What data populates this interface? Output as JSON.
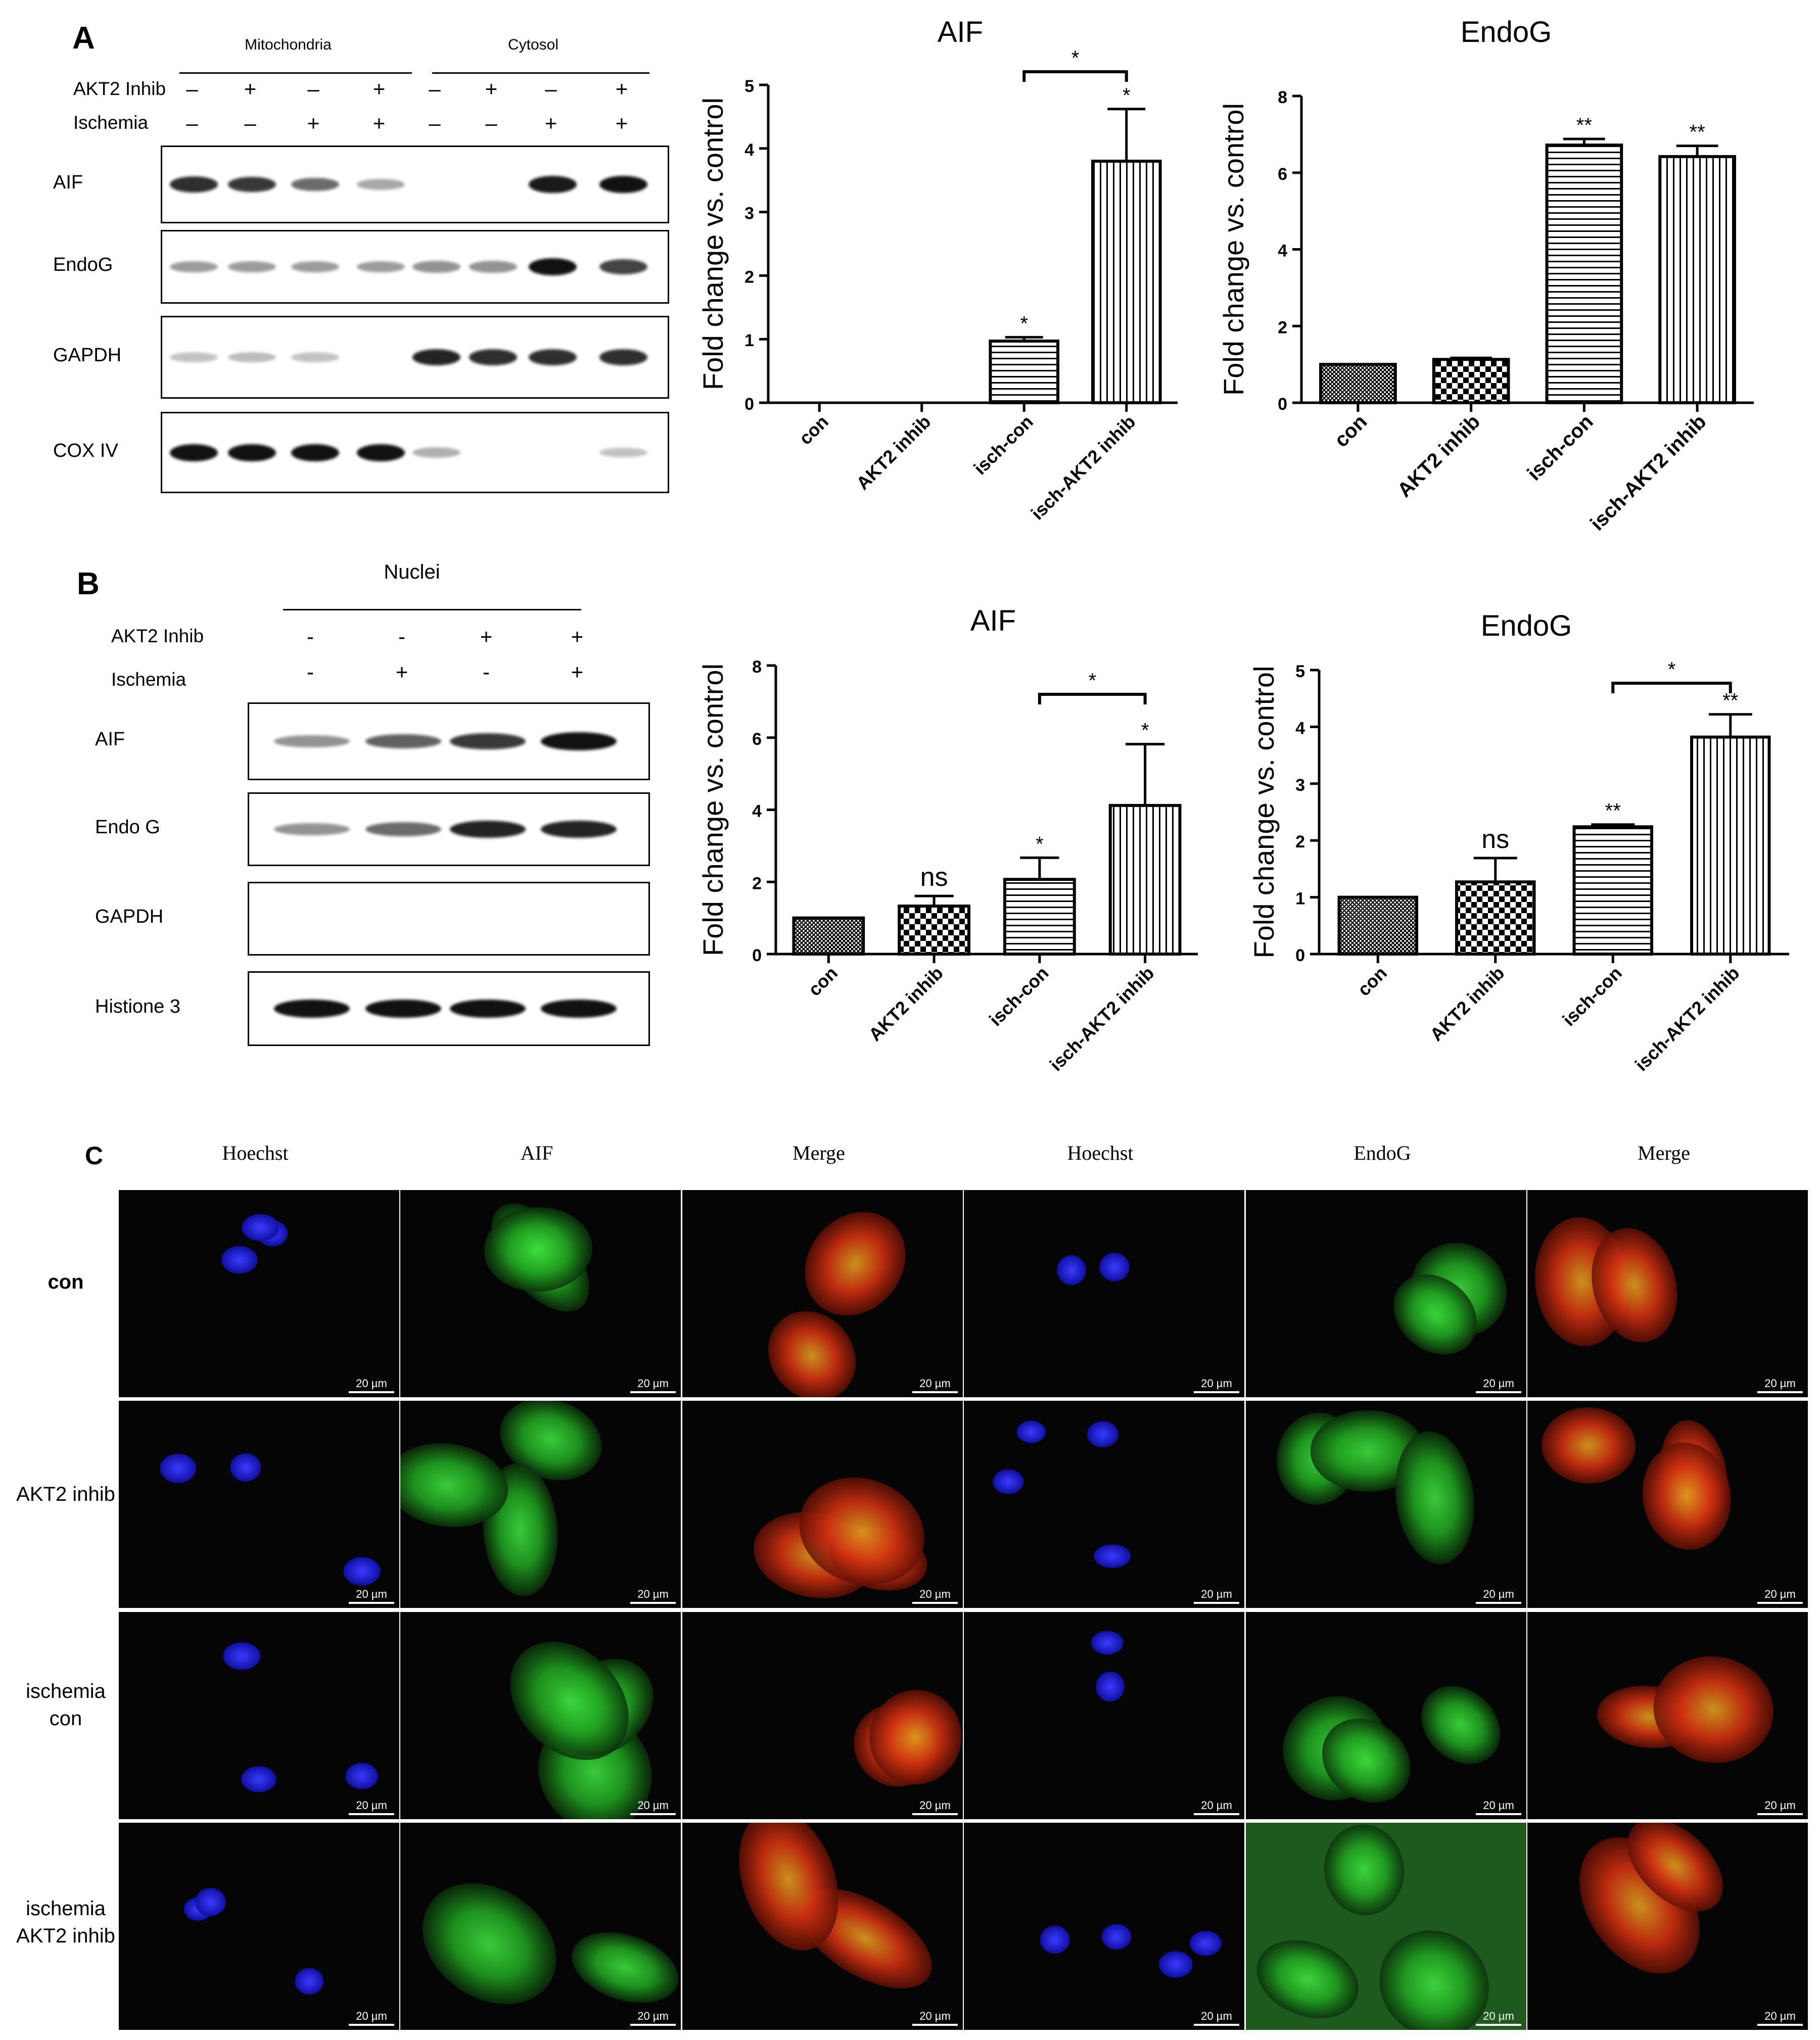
{
  "panel_a": {
    "label": "A",
    "fractions": [
      "Mitochondria",
      "Cytosol"
    ],
    "row_labels": [
      "AKT2 Inhib",
      "Ischemia"
    ],
    "akt2_signs": [
      "–",
      "+",
      "–",
      "+",
      "–",
      "+",
      "–",
      "+"
    ],
    "isch_signs": [
      "–",
      "–",
      "+",
      "+",
      "–",
      "–",
      "+",
      "+"
    ],
    "blots": [
      "AIF",
      "EndoG",
      "GAPDH",
      "COX IV"
    ]
  },
  "panel_b": {
    "label": "B",
    "fraction": "Nuclei",
    "row_labels": [
      "AKT2 Inhib",
      "Ischemia"
    ],
    "akt2_signs": [
      "-",
      "-",
      "+",
      "+"
    ],
    "isch_signs": [
      "-",
      "+",
      "-",
      "+"
    ],
    "blots": [
      "AIF",
      "Endo G",
      "GAPDH",
      "Histione 3"
    ]
  },
  "panel_c": {
    "label": "C",
    "columns": [
      "Hoechst",
      "AIF",
      "Merge",
      "Hoechst",
      "EndoG",
      "Merge"
    ],
    "rows": [
      "con",
      "AKT2 inhib",
      "ischemia\ncon",
      "ischemia\nAKT2 inhib"
    ],
    "scale_bar": "20 µm"
  },
  "colors": {
    "nuclei": "#2a2aff",
    "aif_green": "#22c022",
    "merge_red": "#d02a10",
    "background": "#050505"
  },
  "chart_data": [
    {
      "type": "bar",
      "title": "AIF",
      "ylabel": "Fold change vs. control",
      "categories": [
        "con",
        "AKT2 inhib",
        "isch-con",
        "isch-AKT2 inhib"
      ],
      "values": [
        0,
        0,
        0.97,
        3.8
      ],
      "errors": [
        0,
        0,
        0.06,
        0.82
      ],
      "patterns": [
        "crosshatch",
        "checker",
        "hlines",
        "vlines"
      ],
      "sig": [
        "",
        "",
        "*",
        "*"
      ],
      "bracket": {
        "from": 2,
        "to": 3,
        "label": "*"
      },
      "ylim": [
        0,
        5
      ],
      "yticks": [
        0,
        1,
        2,
        3,
        4,
        5
      ]
    },
    {
      "type": "bar",
      "title": "EndoG",
      "ylabel": "Fold change vs. control",
      "categories": [
        "con",
        "AKT2 inhib",
        "isch-con",
        "isch-AKT2 inhib"
      ],
      "values": [
        1.0,
        1.13,
        6.72,
        6.42
      ],
      "errors": [
        0,
        0.04,
        0.16,
        0.28
      ],
      "patterns": [
        "crosshatch",
        "checker",
        "hlines",
        "vlines"
      ],
      "sig": [
        "",
        "",
        "**",
        "**"
      ],
      "bracket": null,
      "ylim": [
        0,
        8
      ],
      "yticks": [
        0,
        2,
        4,
        6,
        8
      ]
    },
    {
      "type": "bar",
      "title": "AIF",
      "ylabel": "Fold change vs. control",
      "categories": [
        "con",
        "AKT2 inhib",
        "isch-con",
        "isch-AKT2 inhib"
      ],
      "values": [
        1.0,
        1.33,
        2.07,
        4.12
      ],
      "errors": [
        0,
        0.28,
        0.6,
        1.7
      ],
      "patterns": [
        "crosshatch",
        "checker",
        "hlines",
        "vlines"
      ],
      "sig": [
        "",
        "ns",
        "*",
        "*"
      ],
      "bracket": {
        "from": 2,
        "to": 3,
        "label": "*"
      },
      "ylim": [
        0,
        8
      ],
      "yticks": [
        0,
        2,
        4,
        6,
        8
      ]
    },
    {
      "type": "bar",
      "title": "EndoG",
      "ylabel": "Fold change vs. control",
      "categories": [
        "con",
        "AKT2 inhib",
        "isch-con",
        "isch-AKT2 inhib"
      ],
      "values": [
        1.0,
        1.27,
        2.24,
        3.82
      ],
      "errors": [
        0,
        0.42,
        0.04,
        0.4
      ],
      "patterns": [
        "crosshatch",
        "checker",
        "hlines",
        "vlines"
      ],
      "sig": [
        "",
        "ns",
        "**",
        "**"
      ],
      "bracket": {
        "from": 2,
        "to": 3,
        "label": "*"
      },
      "ylim": [
        0,
        5
      ],
      "yticks": [
        0,
        1,
        2,
        3,
        4,
        5
      ]
    }
  ]
}
